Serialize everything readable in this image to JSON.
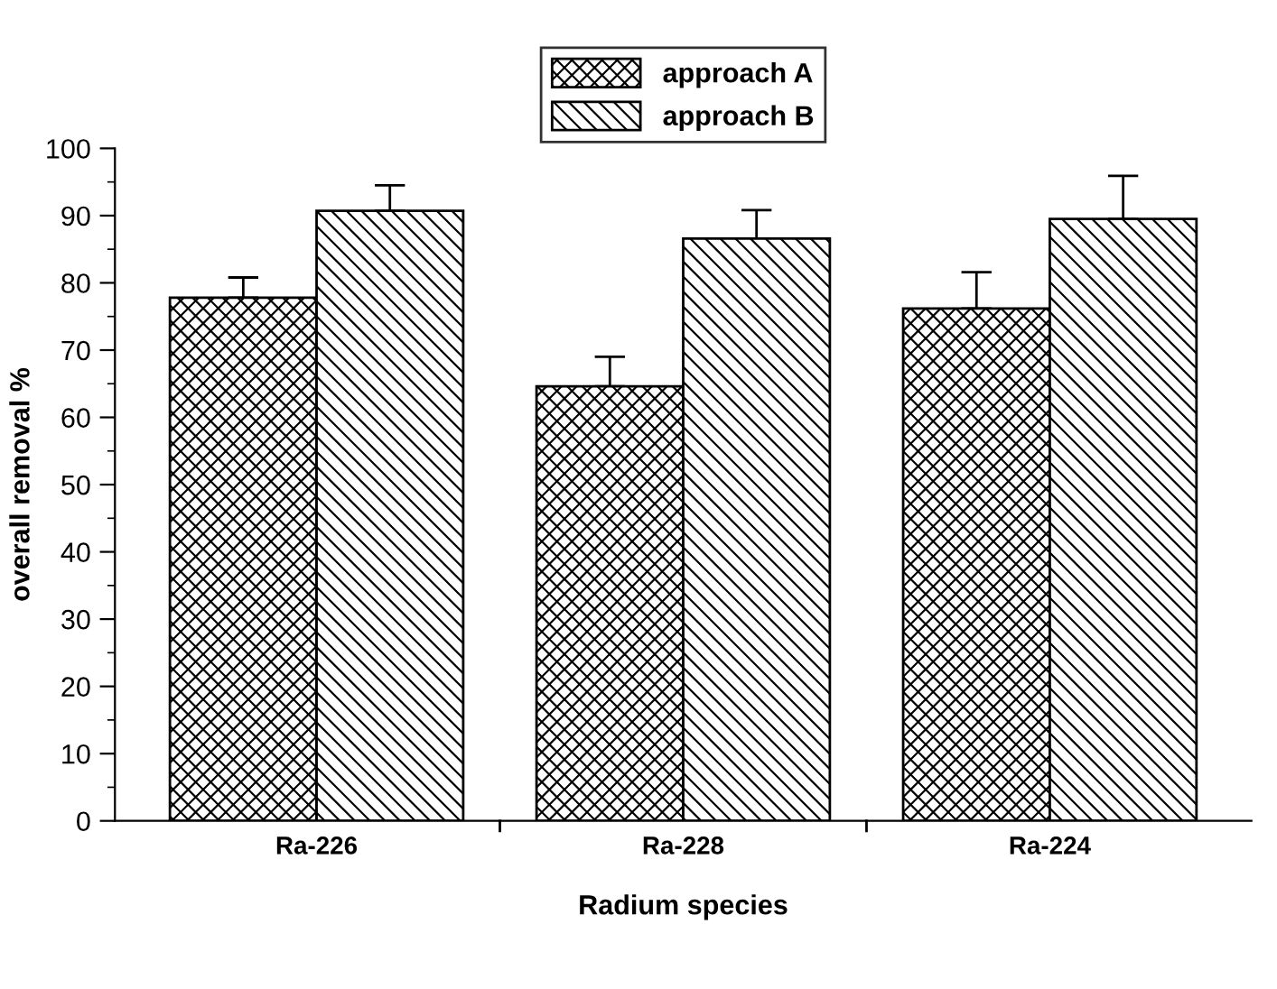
{
  "chart_data": {
    "type": "bar",
    "xlabel": "Radium species",
    "ylabel": "overall removal %",
    "categories": [
      "Ra-226",
      "Ra-228",
      "Ra-224"
    ],
    "series": [
      {
        "name": "approach A",
        "color": "#000000",
        "values": [
          77.8,
          64.6,
          76.2
        ],
        "errors": [
          3.0,
          4.4,
          5.4
        ]
      },
      {
        "name": "approach B",
        "color": "#000000",
        "values": [
          90.7,
          86.6,
          89.5
        ],
        "errors": [
          3.8,
          4.2,
          6.4
        ]
      }
    ],
    "ylim": [
      0,
      100
    ],
    "yticks": [
      0,
      10,
      20,
      30,
      40,
      50,
      60,
      70,
      80,
      90,
      100
    ],
    "legend": "top",
    "grid": false
  }
}
